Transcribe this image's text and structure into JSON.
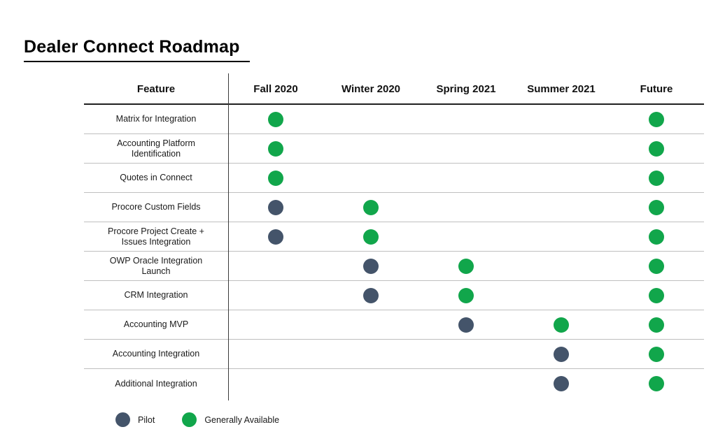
{
  "page_title": "Dealer Connect Roadmap",
  "chart_data": {
    "type": "table",
    "title": "Dealer Connect Roadmap",
    "columns": [
      "Feature",
      "Fall 2020",
      "Winter 2020",
      "Spring 2021",
      "Summer 2021",
      "Future"
    ],
    "rows": [
      {
        "feature": "Matrix for Integration",
        "cells": [
          "ga",
          null,
          null,
          null,
          "ga"
        ]
      },
      {
        "feature": "Accounting Platform Identification",
        "cells": [
          "ga",
          null,
          null,
          null,
          "ga"
        ]
      },
      {
        "feature": "Quotes in Connect",
        "cells": [
          "ga",
          null,
          null,
          null,
          "ga"
        ]
      },
      {
        "feature": "Procore Custom Fields",
        "cells": [
          "pilot",
          "ga",
          null,
          null,
          "ga"
        ]
      },
      {
        "feature": "Procore Project Create + Issues Integration",
        "cells": [
          "pilot",
          "ga",
          null,
          null,
          "ga"
        ]
      },
      {
        "feature": "OWP Oracle Integration Launch",
        "cells": [
          null,
          "pilot",
          "ga",
          null,
          "ga"
        ]
      },
      {
        "feature": "CRM Integration",
        "cells": [
          null,
          "pilot",
          "ga",
          null,
          "ga"
        ]
      },
      {
        "feature": "Accounting MVP",
        "cells": [
          null,
          null,
          "pilot",
          "ga",
          "ga"
        ]
      },
      {
        "feature": "Accounting Integration",
        "cells": [
          null,
          null,
          null,
          "pilot",
          "ga"
        ]
      },
      {
        "feature": "Additional Integration",
        "cells": [
          null,
          null,
          null,
          "pilot",
          "ga"
        ]
      }
    ],
    "legend": [
      {
        "key": "pilot",
        "label": "Pilot"
      },
      {
        "key": "ga",
        "label": "Generally Available"
      }
    ],
    "colors": {
      "pilot": "#44546A",
      "ga": "#11A64B"
    },
    "layout": {
      "grid": "row dividers only",
      "legend_position": "bottom-left"
    }
  }
}
